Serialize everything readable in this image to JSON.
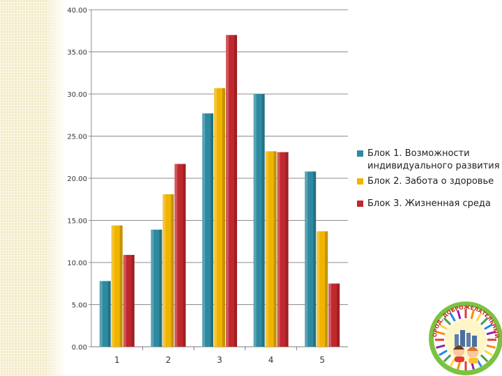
{
  "chart_data": {
    "type": "bar",
    "categories": [
      "1",
      "2",
      "3",
      "4",
      "5"
    ],
    "series": [
      {
        "name": "Блок 1. Возможности индивидуального развития",
        "color": "#2e8aa0",
        "values": [
          7.8,
          13.9,
          27.7,
          30.0,
          20.8
        ]
      },
      {
        "name": "Блок 2. Забота о здоровье",
        "color": "#f0b400",
        "values": [
          14.4,
          18.1,
          30.7,
          23.2,
          13.7
        ]
      },
      {
        "name": "Блок 3. Жизненная среда",
        "color": "#c0282d",
        "values": [
          10.9,
          21.7,
          37.0,
          23.1,
          7.5
        ]
      }
    ],
    "y_ticks": [
      "0.00",
      "5.00",
      "10.00",
      "15.00",
      "20.00",
      "25.00",
      "30.00",
      "35.00",
      "40.00"
    ],
    "ylim": [
      0,
      40
    ],
    "grid": true,
    "legend_position": "right",
    "title": "",
    "xlabel": "",
    "ylabel": ""
  },
  "logo": {
    "text": "ПЕРМЬ - ГОРОД, ДОБРОЖЕЛАТЕЛЬНЫЙ К ДЕТЯМ",
    "ring_colors": [
      "#e53935",
      "#fb8c00",
      "#fdd835",
      "#43a047",
      "#1e88e5",
      "#8e24aa"
    ]
  }
}
